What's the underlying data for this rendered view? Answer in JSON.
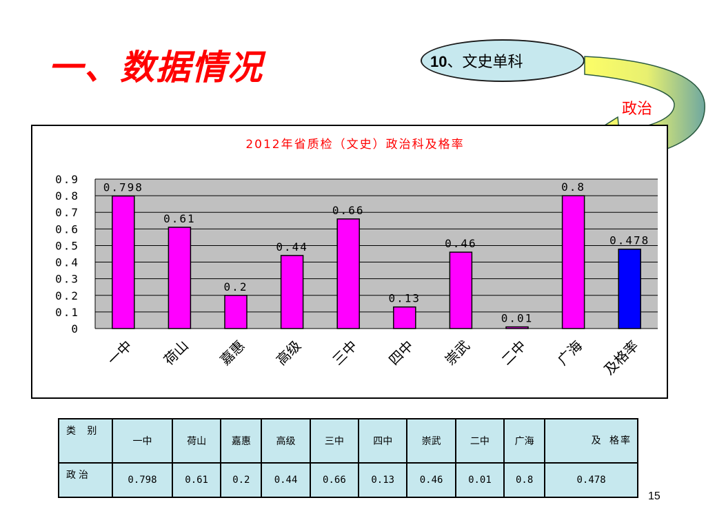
{
  "slide": {
    "title": "一、数据情况",
    "page_number": "15"
  },
  "callout": {
    "oval_number": "10",
    "oval_text": "、文史单科",
    "subject": "政治"
  },
  "chart_data": {
    "type": "bar",
    "title": "2012年省质检（文史）政治科及格率",
    "categories": [
      "一中",
      "荷山",
      "嘉惠",
      "高级",
      "三中",
      "四中",
      "崇武",
      "二中",
      "广海",
      "及格率"
    ],
    "values": [
      0.798,
      0.61,
      0.2,
      0.44,
      0.66,
      0.13,
      0.46,
      0.01,
      0.8,
      0.478
    ],
    "data_labels": [
      "0.798",
      "0.61",
      "0.2",
      "0.44",
      "0.66",
      "0.13",
      "0.46",
      "0.01",
      "0.8",
      "0.478"
    ],
    "ylim": [
      0,
      0.9
    ],
    "yticks": [
      "0",
      "0.1",
      "0.2",
      "0.3",
      "0.4",
      "0.5",
      "0.6",
      "0.7",
      "0.8",
      "0.9"
    ],
    "xlabel": "",
    "ylabel": "",
    "grid": true,
    "colors": {
      "school_bar": "#ff00ff",
      "pass_rate_bar": "#0000ff",
      "plot_background": "#c0c0c0",
      "title": "#ff0000"
    }
  },
  "table": {
    "header_label": "类 别",
    "columns": [
      "一中",
      "荷山",
      "嘉惠",
      "高级",
      "三中",
      "四中",
      "崇武",
      "二中",
      "广海",
      "及 格率"
    ],
    "row_label": "政治",
    "values": [
      "0.798",
      "0.61",
      "0.2",
      "0.44",
      "0.66",
      "0.13",
      "0.46",
      "0.01",
      "0.8",
      "0.478"
    ]
  }
}
